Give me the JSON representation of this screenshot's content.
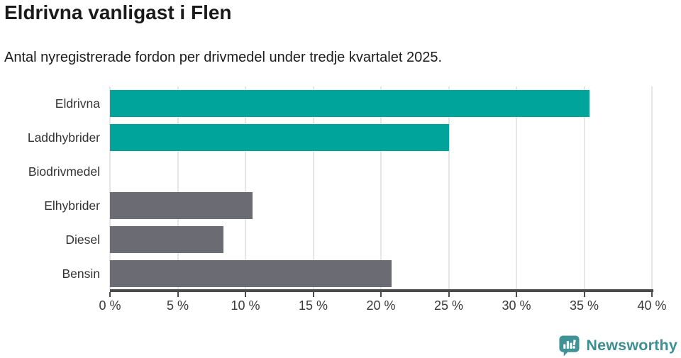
{
  "header": {
    "title": "Eldrivna vanligast i Flen",
    "subtitle": "Antal nyregistrerade fordon per drivmedel under tredje kvartalet 2025."
  },
  "chart_data": {
    "type": "bar",
    "orientation": "horizontal",
    "title": "Eldrivna vanligast i Flen",
    "subtitle": "Antal nyregistrerade fordon per drivmedel under tredje kvartalet 2025.",
    "categories": [
      "Eldrivna",
      "Laddhybrider",
      "Biodrivmedel",
      "Elhybrider",
      "Diesel",
      "Bensin"
    ],
    "values": [
      35.4,
      25.0,
      0,
      10.5,
      8.4,
      20.8
    ],
    "bar_colors": [
      "#00a49a",
      "#00a49a",
      "#6b6b73",
      "#6b6b73",
      "#6b6b73",
      "#6b6b73"
    ],
    "xlim": [
      0,
      40
    ],
    "x_ticks": [
      0,
      5,
      10,
      15,
      20,
      25,
      30,
      35,
      40
    ],
    "x_tick_suffix": " %",
    "xlabel": "",
    "ylabel": "",
    "grid": true,
    "legend": "none",
    "colors": {
      "highlight": "#00a49a",
      "neutral": "#6b6b73",
      "gridline": "#e6e6e6",
      "axis": "#4a4a4b"
    }
  },
  "footer": {
    "brand": "Newsworthy",
    "brand_color": "#3d8f93"
  }
}
